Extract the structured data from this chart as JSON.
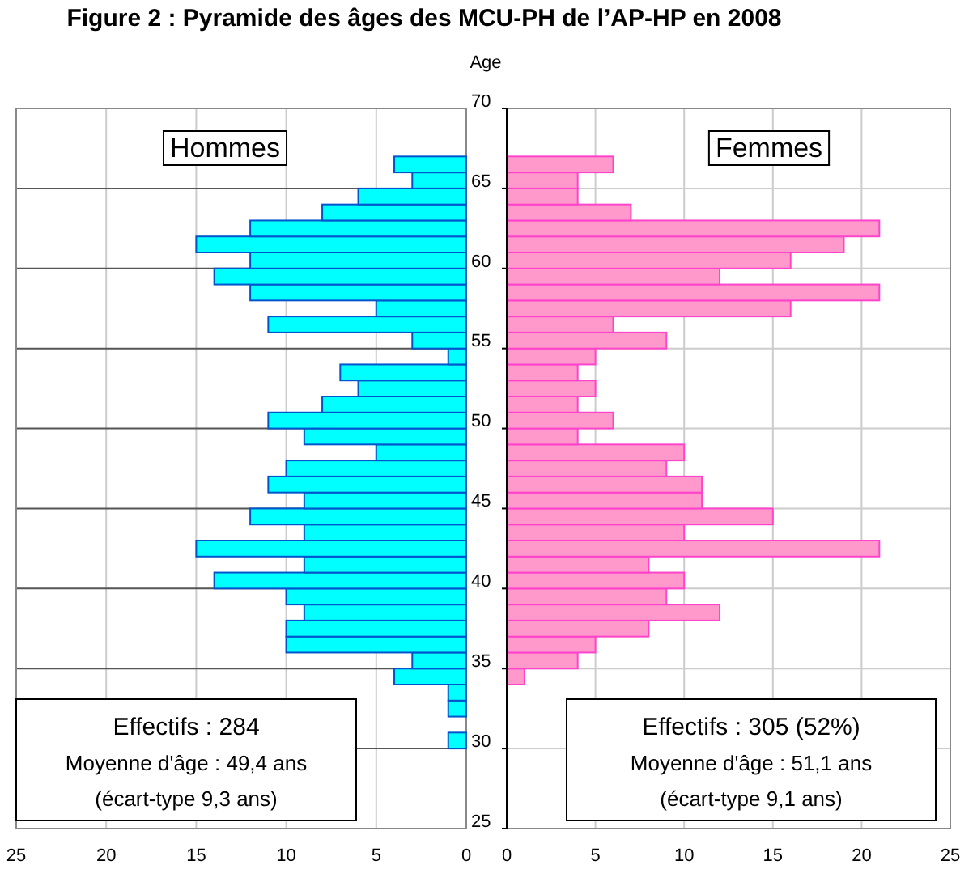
{
  "chart_data": [
    {
      "type": "histogram",
      "orientation": "horizontal",
      "title": "Figure 2 : Pyramide des âges des MCU-PH de l’AP-HP en 2008",
      "xlim": [
        25,
        0
      ],
      "xticks": [
        25,
        20,
        15,
        10,
        5,
        0
      ],
      "ylim": [
        25,
        70
      ],
      "yticks": [
        25,
        30,
        35,
        40,
        45,
        50,
        55,
        60,
        65,
        70
      ],
      "tick_labels": "x",
      "grid": true,
      "bins": [
        30,
        31,
        32,
        33,
        34,
        35,
        36,
        37,
        38,
        39,
        40,
        41,
        42,
        43,
        44,
        45,
        46,
        47,
        48,
        49,
        50,
        51,
        52,
        53,
        54,
        55,
        56,
        57,
        58,
        59,
        60,
        61,
        62,
        63,
        64,
        65,
        66,
        67
      ],
      "series": [
        {
          "name": "Hommes",
          "color": "#00ffff",
          "values": [
            1,
            0,
            1,
            1,
            4,
            3,
            10,
            10,
            9,
            10,
            14,
            9,
            15,
            9,
            12,
            9,
            11,
            10,
            5,
            9,
            11,
            8,
            6,
            7,
            1,
            3,
            11,
            5,
            12,
            14,
            12,
            15,
            12,
            8,
            6,
            3,
            4
          ]
        }
      ],
      "annotations": [
        "Effectifs : 284",
        "Moyenne d'âge : 49,4 ans",
        "(écart-type 9,3 ans)"
      ]
    },
    {
      "type": "histogram",
      "orientation": "horizontal",
      "ylabel": "Age",
      "xlim": [
        0,
        25
      ],
      "xticks": [
        0,
        5,
        10,
        15,
        20,
        25
      ],
      "ylim": [
        25,
        70
      ],
      "yticks": [
        25,
        30,
        35,
        40,
        45,
        50,
        55,
        60,
        65,
        70
      ],
      "grid": true,
      "bins": [
        34,
        35,
        36,
        37,
        38,
        39,
        40,
        41,
        42,
        43,
        44,
        45,
        46,
        47,
        48,
        49,
        50,
        51,
        52,
        53,
        54,
        55,
        56,
        57,
        58,
        59,
        60,
        61,
        62,
        63,
        64,
        65,
        66,
        67
      ],
      "series": [
        {
          "name": "Femmes",
          "color": "#ff99cc",
          "values": [
            1,
            4,
            5,
            8,
            12,
            9,
            10,
            8,
            21,
            10,
            15,
            11,
            11,
            9,
            10,
            4,
            6,
            4,
            5,
            4,
            5,
            9,
            6,
            16,
            21,
            12,
            16,
            19,
            21,
            7,
            4,
            4,
            6
          ]
        }
      ],
      "annotations": [
        "Effectifs : 305 (52%)",
        "Moyenne d'âge : 51,1 ans",
        "(écart-type 9,1 ans)"
      ]
    }
  ]
}
